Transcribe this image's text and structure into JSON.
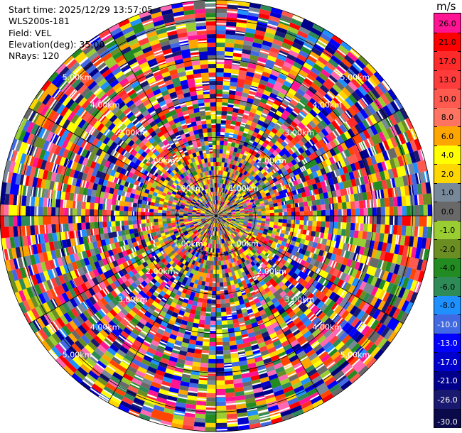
{
  "info": {
    "start_time": "Start time: 2025/12/29 13:57:05",
    "station": "WLS200s-181",
    "field": "Field: VEL",
    "elevation": "Elevation(deg): 35.00",
    "nrays": "NRays: 120"
  },
  "colorbar": {
    "unit": "m/s",
    "levels": [
      {
        "label": "26.0",
        "color": "#ff3ea0",
        "band_color": "#ff1493"
      },
      {
        "label": "21.0",
        "color": "#ff0000",
        "band_color": "#ff0000"
      },
      {
        "label": "17.0",
        "color": "#ff1a1a",
        "band_color": "#ff2a2a"
      },
      {
        "label": "13.0",
        "color": "#ff4040",
        "band_color": "#ff3c3c"
      },
      {
        "label": "10.0",
        "color": "#ff6347",
        "band_color": "#ff5a50"
      },
      {
        "label": "8.0",
        "color": "#ff7f50",
        "band_color": "#ff7460"
      },
      {
        "label": "6.0",
        "color": "#ffa500",
        "band_color": "#ffa500"
      },
      {
        "label": "4.0",
        "color": "#ffff00",
        "band_color": "#ffff00"
      },
      {
        "label": "2.0",
        "color": "#ffd700",
        "band_color": "#ffd700"
      },
      {
        "label": "1.0",
        "color": "#708090",
        "band_color": "#778899"
      },
      {
        "label": "0.0",
        "color": "#808080",
        "band_color": "#696969"
      },
      {
        "label": "-1.0",
        "color": "#9acd32",
        "band_color": "#9acd32"
      },
      {
        "label": "-2.0",
        "color": "#6b8e23",
        "band_color": "#6b8e23"
      },
      {
        "label": "-4.0",
        "color": "#228b22",
        "band_color": "#228b22"
      },
      {
        "label": "-6.0",
        "color": "#2e8b57",
        "band_color": "#2e8b57"
      },
      {
        "label": "-8.0",
        "color": "#1e90ff",
        "band_color": "#1e90ff"
      },
      {
        "label": "-10.0",
        "color": "#4169e1",
        "band_color": "#4169e1"
      },
      {
        "label": "-13.0",
        "color": "#0000ff",
        "band_color": "#0000ff"
      },
      {
        "label": "-17.0",
        "color": "#0000cd",
        "band_color": "#0000cd"
      },
      {
        "label": "-21.0",
        "color": "#000080",
        "band_color": "#00008b"
      },
      {
        "label": "-26.0",
        "color": "#191970",
        "band_color": "#191970"
      },
      {
        "label": "-30.0",
        "color": "#0a0a4a",
        "band_color": "#0a0a4a"
      }
    ]
  },
  "ppi": {
    "range_labels": [
      "1.00km",
      "2.00km",
      "3.00km",
      "4.00km",
      "5.00km"
    ],
    "max_range_km": 5.5,
    "nrays": 120,
    "palette": [
      "#ff1493",
      "#ff0000",
      "#ff2a2a",
      "#ff4500",
      "#ffa500",
      "#ffff00",
      "#ffd700",
      "#778899",
      "#696969",
      "#9acd32",
      "#6b8e23",
      "#228b22",
      "#2e8b57",
      "#1e90ff",
      "#4169e1",
      "#0000ff",
      "#0000cd",
      "#00008b",
      "#191970",
      "#ff69b4",
      "#ff3c3c",
      "#ff5a50"
    ]
  }
}
